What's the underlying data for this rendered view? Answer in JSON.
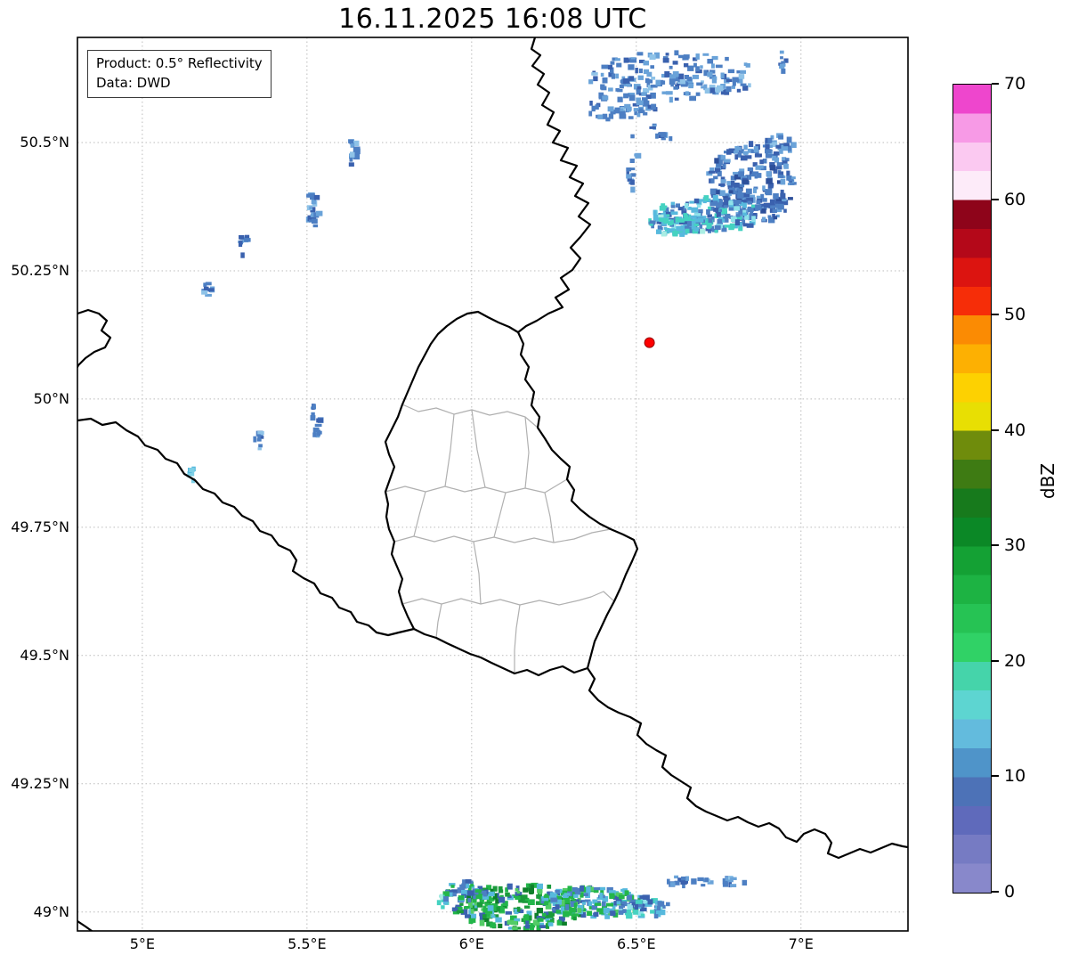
{
  "title": "16.11.2025 16:08 UTC",
  "annotation": {
    "line1": "Product: 0.5° Reflectivity",
    "line2": "Data: DWD"
  },
  "axes": {
    "x_ticks": [
      {
        "value": 5.0,
        "label": "5°E"
      },
      {
        "value": 5.5,
        "label": "5.5°E"
      },
      {
        "value": 6.0,
        "label": "6°E"
      },
      {
        "value": 6.5,
        "label": "6.5°E"
      },
      {
        "value": 7.0,
        "label": "7°E"
      }
    ],
    "y_ticks": [
      {
        "value": 50.5,
        "label": "50.5°N"
      },
      {
        "value": 50.25,
        "label": "50.25°N"
      },
      {
        "value": 50.0,
        "label": "50°N"
      },
      {
        "value": 49.75,
        "label": "49.75°N"
      },
      {
        "value": 49.5,
        "label": "49.5°N"
      },
      {
        "value": 49.25,
        "label": "49.25°N"
      },
      {
        "value": 49.0,
        "label": "49°N"
      }
    ]
  },
  "extent": {
    "lon_min": 4.803,
    "lon_max": 7.325,
    "lat_min": 48.963,
    "lat_max": 50.705
  },
  "colorbar": {
    "label": "dBZ",
    "min": 0,
    "max": 70,
    "ticks": [
      0,
      10,
      20,
      30,
      40,
      50,
      60,
      70
    ],
    "colors_bottom_to_top": [
      "#8888cb",
      "#767bc3",
      "#5f6abb",
      "#4d72b7",
      "#4f94c9",
      "#63bbdd",
      "#5dd5d1",
      "#45d4aa",
      "#30d266",
      "#26c354",
      "#1db343",
      "#14a134",
      "#0b8826",
      "#177a1c",
      "#3e7b13",
      "#6f8c0c",
      "#e8df03",
      "#fdd101",
      "#fdb002",
      "#fb8b03",
      "#f62d08",
      "#dc1410",
      "#b40819",
      "#8e041a",
      "#fdebf9",
      "#fbc9f1",
      "#f79ae6",
      "#ee46cd"
    ]
  },
  "marker": {
    "name": "radar-site",
    "lon": 6.54,
    "lat": 50.11,
    "fill": "#ff0000",
    "edge": "#990000"
  },
  "style_colors": {
    "background": "#ffffff",
    "country_border": "#000000",
    "canton_border": "#b0b0b0",
    "gridline": "#bbbbbb"
  },
  "radar_echoes": {
    "palettes": {
      "blue": [
        [
          "#4d7fc3",
          0.4
        ],
        [
          "#6aa3d9",
          0.28
        ],
        [
          "#3a61ae",
          0.22
        ],
        [
          "#8fc3e8",
          0.1
        ]
      ],
      "blue_sparse": [
        [
          "#4d7fc3",
          0.5
        ],
        [
          "#6aa3d9",
          0.3
        ],
        [
          "#3a61ae",
          0.2
        ]
      ],
      "blue_dense": [
        [
          "#4d7fc3",
          0.38
        ],
        [
          "#3a61ae",
          0.3
        ],
        [
          "#6aa3d9",
          0.24
        ],
        [
          "#2d4f9a",
          0.08
        ]
      ],
      "blue_cyan": [
        [
          "#4d7fc3",
          0.33
        ],
        [
          "#57b9dd",
          0.27
        ],
        [
          "#3a61ae",
          0.18
        ],
        [
          "#45d2c1",
          0.12
        ],
        [
          "#8fe2ea",
          0.1
        ]
      ],
      "cyan": [
        [
          "#57b9dd",
          0.35
        ],
        [
          "#45d2c1",
          0.3
        ],
        [
          "#4d7fc3",
          0.2
        ],
        [
          "#a9ede3",
          0.15
        ]
      ],
      "cyan_light": [
        [
          "#7ed0e6",
          0.6
        ],
        [
          "#57b9dd",
          0.4
        ]
      ],
      "green_mix": [
        [
          "#23b64a",
          0.28
        ],
        [
          "#1a9a3b",
          0.2
        ],
        [
          "#52cc66",
          0.15
        ],
        [
          "#3c62b0",
          0.15
        ],
        [
          "#57b9dd",
          0.1
        ],
        [
          "#0e7f2a",
          0.12
        ]
      ],
      "cyan_green": [
        [
          "#57b9dd",
          0.3
        ],
        [
          "#23b64a",
          0.25
        ],
        [
          "#4d7fc3",
          0.2
        ],
        [
          "#52cc66",
          0.15
        ],
        [
          "#3c62b0",
          0.1
        ]
      ],
      "blue_green": [
        [
          "#4d7fc3",
          0.35
        ],
        [
          "#3a61ae",
          0.25
        ],
        [
          "#23b64a",
          0.2
        ],
        [
          "#57b9dd",
          0.2
        ]
      ]
    },
    "regions": [
      {
        "name": "cluster-nne-1",
        "lon": 6.61,
        "lat": 50.63,
        "sx": 95,
        "sy": 27,
        "n": 170,
        "seed": 11,
        "palette": "blue"
      },
      {
        "name": "cluster-nne-2",
        "lon": 6.45,
        "lat": 50.57,
        "sx": 42,
        "sy": 16,
        "n": 50,
        "seed": 12,
        "palette": "blue"
      },
      {
        "name": "speck-ne-edge",
        "lon": 6.95,
        "lat": 50.66,
        "sx": 6,
        "sy": 13,
        "n": 8,
        "seed": 13,
        "palette": "blue"
      },
      {
        "name": "speck-column",
        "lon": 6.49,
        "lat": 50.46,
        "sx": 8,
        "sy": 34,
        "n": 14,
        "seed": 14,
        "palette": "blue_sparse"
      },
      {
        "name": "speck-mid",
        "lon": 6.58,
        "lat": 50.52,
        "sx": 18,
        "sy": 10,
        "n": 10,
        "seed": 15,
        "palette": "blue_sparse"
      },
      {
        "name": "cluster-e-main",
        "lon": 6.85,
        "lat": 50.42,
        "sx": 50,
        "sy": 47,
        "n": 240,
        "seed": 21,
        "palette": "blue_dense"
      },
      {
        "name": "cluster-e-arc",
        "lon": 6.72,
        "lat": 50.36,
        "sx": 62,
        "sy": 20,
        "n": 160,
        "seed": 22,
        "palette": "blue_cyan"
      },
      {
        "name": "cluster-e-fringe",
        "lon": 6.63,
        "lat": 50.34,
        "sx": 35,
        "sy": 12,
        "n": 75,
        "seed": 23,
        "palette": "cyan"
      },
      {
        "name": "cluster-e-nw",
        "lon": 6.93,
        "lat": 50.5,
        "sx": 18,
        "sy": 13,
        "n": 25,
        "seed": 24,
        "palette": "blue"
      },
      {
        "name": "streak-1",
        "lon": 5.64,
        "lat": 50.48,
        "sx": 5,
        "sy": 17,
        "n": 12,
        "seed": 31,
        "palette": "blue"
      },
      {
        "name": "streak-2",
        "lon": 5.52,
        "lat": 50.37,
        "sx": 9,
        "sy": 20,
        "n": 22,
        "seed": 32,
        "palette": "blue"
      },
      {
        "name": "streak-3",
        "lon": 5.31,
        "lat": 50.3,
        "sx": 5,
        "sy": 14,
        "n": 10,
        "seed": 33,
        "palette": "blue"
      },
      {
        "name": "streak-4",
        "lon": 5.2,
        "lat": 50.21,
        "sx": 5,
        "sy": 13,
        "n": 9,
        "seed": 34,
        "palette": "blue"
      },
      {
        "name": "streak-5",
        "lon": 5.53,
        "lat": 49.96,
        "sx": 6,
        "sy": 20,
        "n": 14,
        "seed": 35,
        "palette": "blue"
      },
      {
        "name": "streak-6",
        "lon": 5.35,
        "lat": 49.92,
        "sx": 5,
        "sy": 12,
        "n": 8,
        "seed": 36,
        "palette": "blue"
      },
      {
        "name": "streak-7",
        "lon": 5.15,
        "lat": 49.85,
        "sx": 3,
        "sy": 12,
        "n": 6,
        "seed": 37,
        "palette": "cyan_light"
      },
      {
        "name": "band-s-core",
        "lon": 6.15,
        "lat": 49.01,
        "sx": 75,
        "sy": 25,
        "n": 230,
        "seed": 41,
        "palette": "green_mix"
      },
      {
        "name": "band-s-mid",
        "lon": 6.37,
        "lat": 49.02,
        "sx": 58,
        "sy": 18,
        "n": 150,
        "seed": 42,
        "palette": "cyan_green"
      },
      {
        "name": "band-s-east",
        "lon": 6.52,
        "lat": 49.01,
        "sx": 30,
        "sy": 12,
        "n": 50,
        "seed": 43,
        "palette": "blue_cyan"
      },
      {
        "name": "band-s-west",
        "lon": 5.98,
        "lat": 49.04,
        "sx": 26,
        "sy": 12,
        "n": 40,
        "seed": 44,
        "palette": "blue_green"
      },
      {
        "name": "dash-se-1",
        "lon": 6.66,
        "lat": 49.06,
        "sx": 26,
        "sy": 6,
        "n": 18,
        "seed": 45,
        "palette": "blue"
      },
      {
        "name": "dash-se-2",
        "lon": 6.79,
        "lat": 49.06,
        "sx": 16,
        "sy": 5,
        "n": 10,
        "seed": 46,
        "palette": "blue"
      },
      {
        "name": "band-s-tail",
        "lon": 5.92,
        "lat": 49.02,
        "sx": 8,
        "sy": 9,
        "n": 8,
        "seed": 47,
        "palette": "cyan"
      }
    ]
  }
}
